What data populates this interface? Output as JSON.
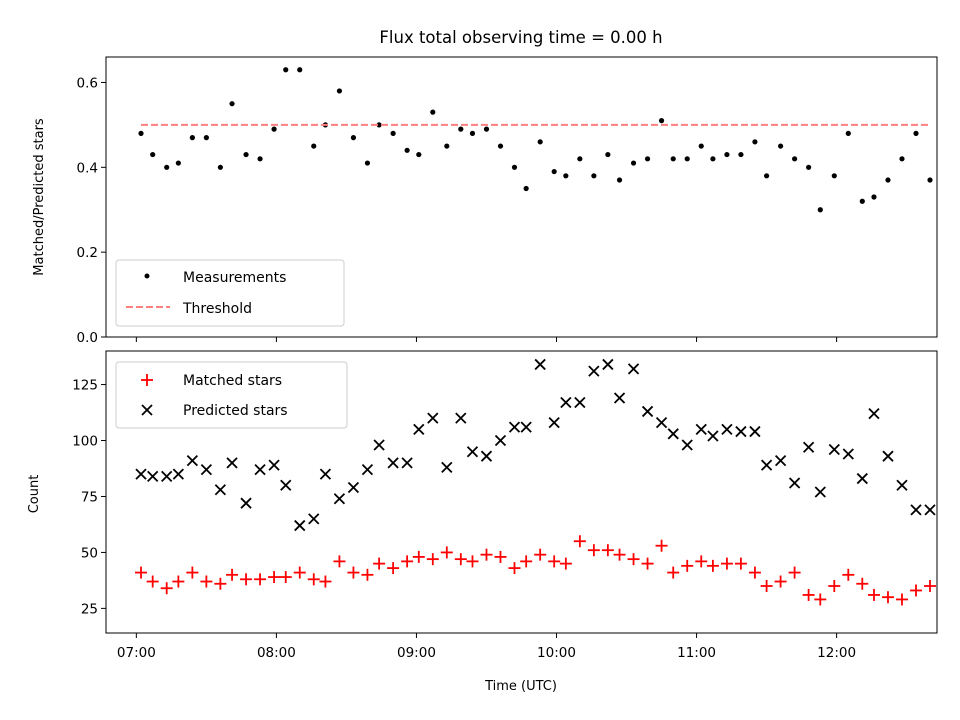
{
  "chart_data": [
    {
      "type": "scatter",
      "title": "Flux total observing time = 0.00 h",
      "xlabel": "",
      "ylabel": "Matched/Predicted stars",
      "xlim": [
        "06:47",
        "12:43"
      ],
      "ylim": [
        0,
        0.66
      ],
      "yticks": [
        "0.0",
        "0.2",
        "0.4",
        "0.6"
      ],
      "grid": false,
      "legend_position": "lower-left",
      "series": [
        {
          "name": "Measurements",
          "marker": "dot",
          "color": "#000000",
          "x": [
            "07:02",
            "07:07",
            "07:13",
            "07:18",
            "07:24",
            "07:30",
            "07:36",
            "07:41",
            "07:47",
            "07:53",
            "07:59",
            "08:04",
            "08:10",
            "08:16",
            "08:21",
            "08:27",
            "08:33",
            "08:39",
            "08:44",
            "08:50",
            "08:56",
            "09:01",
            "09:07",
            "09:13",
            "09:19",
            "09:24",
            "09:30",
            "09:36",
            "09:42",
            "09:47",
            "09:53",
            "09:59",
            "10:04",
            "10:10",
            "10:16",
            "10:22",
            "10:27",
            "10:33",
            "10:39",
            "10:45",
            "10:50",
            "10:56",
            "11:02",
            "11:07",
            "11:13",
            "11:19",
            "11:25",
            "11:30",
            "11:36",
            "11:42",
            "11:48",
            "11:53",
            "11:59",
            "12:05",
            "12:11",
            "12:16",
            "12:22",
            "12:28",
            "12:34",
            "12:40"
          ],
          "y": [
            0.48,
            0.43,
            0.4,
            0.41,
            0.47,
            0.47,
            0.4,
            0.55,
            0.43,
            0.42,
            0.49,
            0.63,
            0.63,
            0.45,
            0.5,
            0.58,
            0.47,
            0.41,
            0.5,
            0.48,
            0.44,
            0.43,
            0.53,
            0.45,
            0.49,
            0.48,
            0.49,
            0.45,
            0.4,
            0.35,
            0.46,
            0.39,
            0.38,
            0.42,
            0.38,
            0.43,
            0.37,
            0.41,
            0.42,
            0.51,
            0.42,
            0.42,
            0.45,
            0.42,
            0.43,
            0.43,
            0.46,
            0.38,
            0.45,
            0.42,
            0.4,
            0.3,
            0.38,
            0.48,
            0.32,
            0.33,
            0.37,
            0.42,
            0.48,
            0.37
          ]
        },
        {
          "name": "Threshold",
          "style": "dashed",
          "color": "#ff7f7f",
          "x": [
            "07:02",
            "12:40"
          ],
          "y": [
            0.5,
            0.5
          ]
        }
      ]
    },
    {
      "type": "scatter",
      "title": "",
      "xlabel": "Time (UTC)",
      "ylabel": "Count",
      "xlim": [
        "06:47",
        "12:43"
      ],
      "ylim": [
        14,
        140
      ],
      "yticks": [
        "25",
        "50",
        "75",
        "100",
        "125"
      ],
      "xticks": [
        "07:00",
        "08:00",
        "09:00",
        "10:00",
        "11:00",
        "12:00"
      ],
      "grid": false,
      "legend_position": "upper-left",
      "series": [
        {
          "name": "Matched stars",
          "marker": "plus",
          "color": "#ff0000",
          "x": [
            "07:02",
            "07:07",
            "07:13",
            "07:18",
            "07:24",
            "07:30",
            "07:36",
            "07:41",
            "07:47",
            "07:53",
            "07:59",
            "08:04",
            "08:10",
            "08:16",
            "08:21",
            "08:27",
            "08:33",
            "08:39",
            "08:44",
            "08:50",
            "08:56",
            "09:01",
            "09:07",
            "09:13",
            "09:19",
            "09:24",
            "09:30",
            "09:36",
            "09:42",
            "09:47",
            "09:53",
            "09:59",
            "10:04",
            "10:10",
            "10:16",
            "10:22",
            "10:27",
            "10:33",
            "10:39",
            "10:45",
            "10:50",
            "10:56",
            "11:02",
            "11:07",
            "11:13",
            "11:19",
            "11:25",
            "11:30",
            "11:36",
            "11:42",
            "11:48",
            "11:53",
            "11:59",
            "12:05",
            "12:11",
            "12:16",
            "12:22",
            "12:28",
            "12:34",
            "12:40"
          ],
          "y": [
            41,
            37,
            34,
            37,
            41,
            37,
            36,
            40,
            38,
            38,
            39,
            39,
            41,
            38,
            37,
            46,
            41,
            40,
            45,
            43,
            46,
            48,
            47,
            50,
            47,
            46,
            49,
            48,
            43,
            46,
            49,
            46,
            45,
            55,
            51,
            51,
            49,
            47,
            45,
            53,
            41,
            44,
            46,
            44,
            45,
            45,
            41,
            35,
            37,
            41,
            31,
            29,
            35,
            40,
            36,
            31,
            30,
            29,
            33,
            35
          ]
        },
        {
          "name": "Predicted stars",
          "marker": "x",
          "color": "#000000",
          "x": [
            "07:02",
            "07:07",
            "07:13",
            "07:18",
            "07:24",
            "07:30",
            "07:36",
            "07:41",
            "07:47",
            "07:53",
            "07:59",
            "08:04",
            "08:10",
            "08:16",
            "08:21",
            "08:27",
            "08:33",
            "08:39",
            "08:44",
            "08:50",
            "08:56",
            "09:01",
            "09:07",
            "09:13",
            "09:19",
            "09:24",
            "09:30",
            "09:36",
            "09:42",
            "09:47",
            "09:53",
            "09:59",
            "10:04",
            "10:10",
            "10:16",
            "10:22",
            "10:27",
            "10:33",
            "10:39",
            "10:45",
            "10:50",
            "10:56",
            "11:02",
            "11:07",
            "11:13",
            "11:19",
            "11:25",
            "11:30",
            "11:36",
            "11:42",
            "11:48",
            "11:53",
            "11:59",
            "12:05",
            "12:11",
            "12:16",
            "12:22",
            "12:28",
            "12:34",
            "12:40"
          ],
          "y": [
            85,
            84,
            84,
            85,
            91,
            87,
            78,
            90,
            72,
            87,
            89,
            80,
            62,
            65,
            85,
            74,
            79,
            87,
            98,
            90,
            90,
            105,
            110,
            88,
            110,
            95,
            93,
            100,
            106,
            106,
            134,
            108,
            117,
            117,
            131,
            134,
            119,
            132,
            113,
            108,
            103,
            98,
            105,
            102,
            105,
            104,
            104,
            89,
            91,
            81,
            97,
            77,
            96,
            94,
            83,
            112,
            93,
            80,
            69,
            69
          ]
        }
      ]
    }
  ]
}
